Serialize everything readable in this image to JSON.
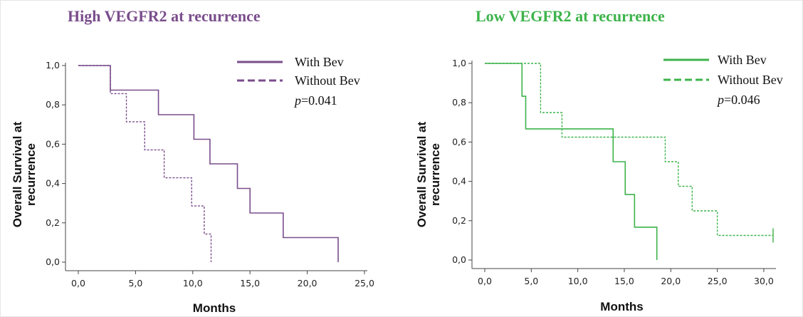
{
  "colors": {
    "high": "#7a4d8c",
    "low": "#3db34a"
  },
  "chart_data": [
    {
      "type": "line",
      "title": "High VEGFR2 at recurrence",
      "xlabel": "Months",
      "ylabel": "Overall Survival at recurrence",
      "ylabel_lines": [
        "Overall Survival at",
        "recurrence"
      ],
      "xlim": [
        0,
        25
      ],
      "ylim": [
        0,
        1
      ],
      "xticks": [
        "0,0",
        "5,0",
        "10,0",
        "15,0",
        "20,0",
        "25,0"
      ],
      "yticks": [
        "0,0",
        "0,2",
        "0,4",
        "0,6",
        "0,8",
        "1,0"
      ],
      "legend": "top-right",
      "annotation_prefix": "p",
      "annotation_value": "=0.041",
      "series": [
        {
          "name": "With Bev",
          "style": "solid",
          "x": [
            0,
            2.8,
            7.0,
            10.1,
            11.5,
            13.9,
            15.0,
            17.9,
            22.7
          ],
          "y": [
            1.0,
            0.875,
            0.75,
            0.625,
            0.5,
            0.375,
            0.25,
            0.125,
            0.0
          ]
        },
        {
          "name": "Without Bev",
          "style": "dashed",
          "x": [
            0,
            2.8,
            4.2,
            5.8,
            7.5,
            9.9,
            11.0,
            11.6
          ],
          "y": [
            1.0,
            0.857,
            0.714,
            0.571,
            0.429,
            0.286,
            0.143,
            0.0
          ]
        }
      ]
    },
    {
      "type": "line",
      "title": "Low VEGFR2 at recurrence",
      "xlabel": "Months",
      "ylabel": "Overall Survival at recurrence",
      "ylabel_lines": [
        "Overall Survival at",
        "recurrence"
      ],
      "xlim": [
        0,
        31
      ],
      "ylim": [
        0,
        1
      ],
      "xticks": [
        "0,0",
        "5,0",
        "10,0",
        "15,0",
        "20,0",
        "25,0",
        "30,0"
      ],
      "yticks": [
        "0,0",
        "0,2",
        "0,4",
        "0,6",
        "0,8",
        "1,0"
      ],
      "legend": "top-right",
      "annotation_prefix": "p",
      "annotation_value": "=0.046",
      "series": [
        {
          "name": "With Bev",
          "style": "solid",
          "x": [
            0,
            4.0,
            4.4,
            13.8,
            15.1,
            16.1,
            18.5
          ],
          "y": [
            1.0,
            0.833,
            0.667,
            0.5,
            0.333,
            0.167,
            0.0
          ]
        },
        {
          "name": "Without Bev",
          "style": "dashed",
          "x": [
            0,
            6.0,
            8.3,
            19.4,
            20.8,
            22.3,
            25.0,
            31.0
          ],
          "y": [
            1.0,
            0.75,
            0.625,
            0.5,
            0.375,
            0.25,
            0.125,
            0.125
          ],
          "censored_x": [
            31.0
          ]
        }
      ]
    }
  ]
}
